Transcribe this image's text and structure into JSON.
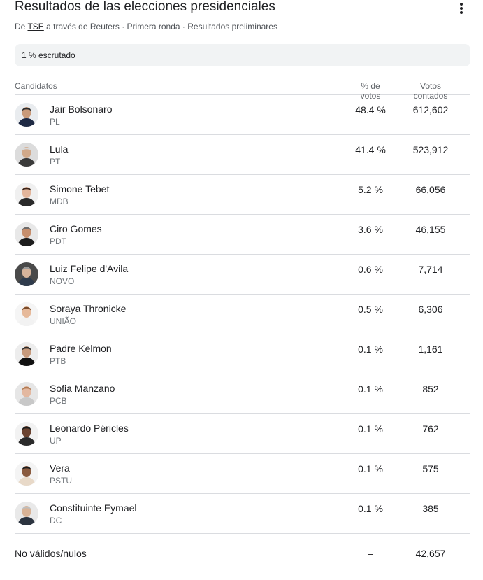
{
  "header": {
    "title": "Resultados de las elecciones presidenciales",
    "source_prefix": "De",
    "source_link": "TSE",
    "source_suffix": "a través de Reuters · Primera ronda · Resultados preliminares",
    "menu_icon": "more-vert-icon"
  },
  "status": {
    "text": "1 % escrutado"
  },
  "columns": {
    "candidates": "Candidatos",
    "percent": "% de votos",
    "votes": "Votos contados"
  },
  "candidates": [
    {
      "name": "Jair Bolsonaro",
      "party": "PL",
      "percent": "48.4 %",
      "votes": "612,602",
      "skin": "#c99a7a",
      "hair": "#2b2b2b",
      "shirt": "#1f2a44",
      "bg": "#e9ecef"
    },
    {
      "name": "Lula",
      "party": "PT",
      "percent": "41.4 %",
      "votes": "523,912",
      "skin": "#d1a98a",
      "hair": "#d8d8d8",
      "shirt": "#3a3a3a",
      "bg": "#dcdcdc"
    },
    {
      "name": "Simone Tebet",
      "party": "MDB",
      "percent": "5.2 %",
      "votes": "66,056",
      "skin": "#e2b59b",
      "hair": "#3b2418",
      "shirt": "#2a2a2a",
      "bg": "#f0f0f0"
    },
    {
      "name": "Ciro Gomes",
      "party": "PDT",
      "percent": "3.6 %",
      "votes": "46,155",
      "skin": "#c78f6d",
      "hair": "#6b6b6b",
      "shirt": "#1d1d1d",
      "bg": "#e8e8e8"
    },
    {
      "name": "Luiz Felipe d'Avila",
      "party": "NOVO",
      "percent": "0.6 %",
      "votes": "7,714",
      "skin": "#d8b49a",
      "hair": "#9a9a9a",
      "shirt": "#2f3b4c",
      "bg": "#4a4a4a"
    },
    {
      "name": "Soraya Thronicke",
      "party": "UNIÃO",
      "percent": "0.5 %",
      "votes": "6,306",
      "skin": "#e6b99a",
      "hair": "#7a4b2a",
      "shirt": "#f2f2f2",
      "bg": "#f5f5f5"
    },
    {
      "name": "Padre Kelmon",
      "party": "PTB",
      "percent": "0.1 %",
      "votes": "1,161",
      "skin": "#c79a7c",
      "hair": "#2a2a2a",
      "shirt": "#111111",
      "bg": "#ededed"
    },
    {
      "name": "Sofia Manzano",
      "party": "PCB",
      "percent": "0.1 %",
      "votes": "852",
      "skin": "#e3b8a0",
      "hair": "#b07a52",
      "shirt": "#c8c8c8",
      "bg": "#e6e6e6"
    },
    {
      "name": "Leonardo Péricles",
      "party": "UP",
      "percent": "0.1 %",
      "votes": "762",
      "skin": "#6b4330",
      "hair": "#1a1a1a",
      "shirt": "#2b2b2b",
      "bg": "#f2f2f2"
    },
    {
      "name": "Vera",
      "party": "PSTU",
      "percent": "0.1 %",
      "votes": "575",
      "skin": "#8a5a3e",
      "hair": "#1e1e1e",
      "shirt": "#e8d9c8",
      "bg": "#f4f4f4"
    },
    {
      "name": "Constituinte Eymael",
      "party": "DC",
      "percent": "0.1 %",
      "votes": "385",
      "skin": "#d9b396",
      "hair": "#bdbdbd",
      "shirt": "#2c3440",
      "bg": "#e9e9e9"
    }
  ],
  "footer": {
    "label": "No válidos/nulos",
    "percent": "–",
    "votes": "42,657"
  }
}
